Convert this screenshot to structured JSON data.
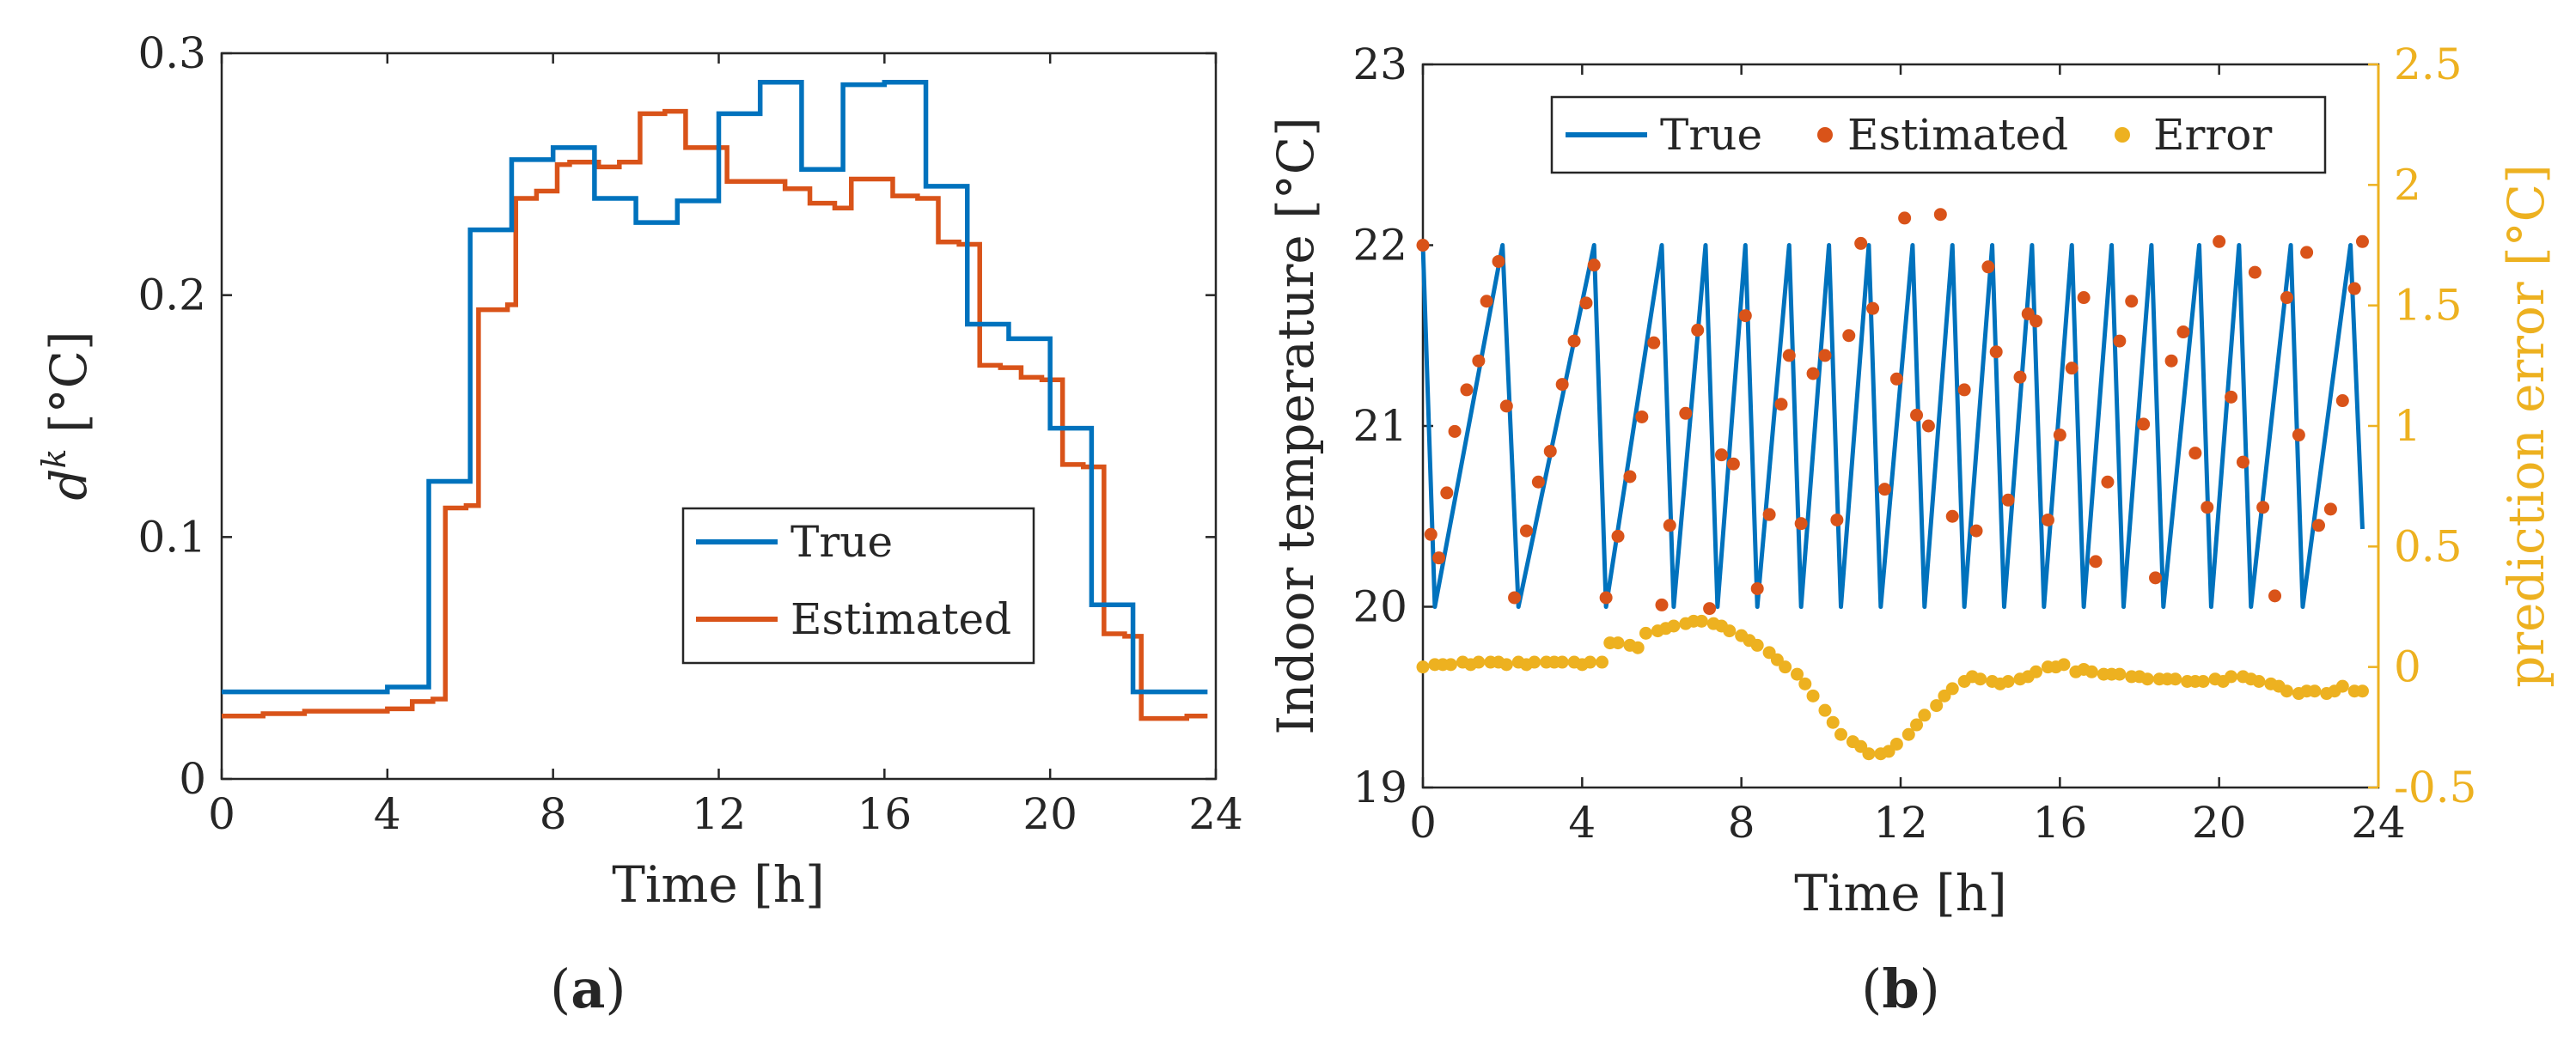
{
  "colors": {
    "true_line": "#0072BD",
    "estimated": "#D95319",
    "error": "#EDB120",
    "axis": "#262626"
  },
  "panels": {
    "a": {
      "label_prefix": "(",
      "label_letter": "a",
      "label_suffix": ")"
    },
    "b": {
      "label_prefix": "(",
      "label_letter": "b",
      "label_suffix": ")"
    }
  },
  "chart_data": [
    {
      "id": "a",
      "type": "line",
      "title": "",
      "xlabel": "Time [h]",
      "ylabel_main": "d",
      "ylabel_sup": "k",
      "ylabel_unit": " [°C]",
      "xlim": [
        0,
        24
      ],
      "ylim": [
        0,
        0.3
      ],
      "xticks": [
        0,
        4,
        8,
        12,
        16,
        20,
        24
      ],
      "xtick_labels": [
        "0",
        "4",
        "8",
        "12",
        "16",
        "20",
        "24"
      ],
      "yticks": [
        0,
        0.1,
        0.2,
        0.3
      ],
      "ytick_labels": [
        "0",
        "0.1",
        "0.2",
        "0.3"
      ],
      "legend": {
        "position": "lower-right",
        "entries": [
          "True",
          "Estimated"
        ]
      },
      "series": [
        {
          "name": "True",
          "style": "step",
          "x": [
            0,
            4,
            4.8,
            5,
            5.8,
            6,
            6.8,
            7,
            7.8,
            8,
            8.8,
            9,
            9.8,
            10,
            10.8,
            11,
            11.8,
            12,
            12.8,
            13,
            13.8,
            14,
            14.8,
            15,
            15.8,
            16,
            16.8,
            17,
            17.8,
            18,
            18.8,
            19,
            19.8,
            20,
            20.8,
            21,
            21.8,
            22,
            23.8
          ],
          "y": [
            0.036,
            0.038,
            0.038,
            0.123,
            0.123,
            0.227,
            0.227,
            0.256,
            0.256,
            0.261,
            0.261,
            0.24,
            0.24,
            0.23,
            0.23,
            0.239,
            0.239,
            0.275,
            0.275,
            0.288,
            0.288,
            0.252,
            0.252,
            0.287,
            0.287,
            0.288,
            0.288,
            0.245,
            0.245,
            0.188,
            0.188,
            0.182,
            0.182,
            0.145,
            0.145,
            0.072,
            0.072,
            0.036,
            0.036
          ]
        },
        {
          "name": "Estimated",
          "style": "step",
          "x": [
            0,
            1,
            2,
            3,
            4,
            4.6,
            5.1,
            5.4,
            5.9,
            6.2,
            6.9,
            7.1,
            7.6,
            8.1,
            8.4,
            9.1,
            9.6,
            10.1,
            10.7,
            11.2,
            11.6,
            12.2,
            12.9,
            13.6,
            14.2,
            14.8,
            15.2,
            15.8,
            16.2,
            16.8,
            17.3,
            17.8,
            18.3,
            18.8,
            19.3,
            19.8,
            20.3,
            20.8,
            21.3,
            21.8,
            22.2,
            22.8,
            23.3,
            23.8
          ],
          "y": [
            0.026,
            0.027,
            0.028,
            0.028,
            0.029,
            0.032,
            0.033,
            0.112,
            0.113,
            0.194,
            0.196,
            0.24,
            0.243,
            0.254,
            0.255,
            0.253,
            0.255,
            0.275,
            0.276,
            0.261,
            0.261,
            0.247,
            0.247,
            0.244,
            0.238,
            0.236,
            0.248,
            0.248,
            0.241,
            0.24,
            0.222,
            0.221,
            0.171,
            0.17,
            0.166,
            0.165,
            0.13,
            0.129,
            0.06,
            0.059,
            0.025,
            0.025,
            0.026,
            0.026
          ]
        }
      ]
    },
    {
      "id": "b",
      "type": "line+scatter",
      "title": "",
      "xlabel": "Time [h]",
      "ylabel_left": "Indoor temperature [°C]",
      "ylabel_right": "prediction error [°C]",
      "xlim": [
        0,
        24
      ],
      "ylim_left": [
        19,
        23
      ],
      "ylim_right": [
        -0.5,
        2.5
      ],
      "xticks": [
        0,
        4,
        8,
        12,
        16,
        20,
        24
      ],
      "xtick_labels": [
        "0",
        "4",
        "8",
        "12",
        "16",
        "20",
        "24"
      ],
      "yticks_left": [
        19,
        20,
        21,
        22,
        23
      ],
      "ytick_labels_left": [
        "19",
        "20",
        "21",
        "22",
        "23"
      ],
      "yticks_right": [
        -0.5,
        0,
        0.5,
        1,
        1.5,
        2,
        2.5
      ],
      "ytick_labels_right": [
        "-0.5",
        "0",
        "0.5",
        "1",
        "1.5",
        "2",
        "2.5"
      ],
      "legend": {
        "position": "top-left",
        "entries": [
          "True",
          "Estimated",
          "Error"
        ]
      },
      "series": [
        {
          "name": "True",
          "kind": "line",
          "axis": "left",
          "x": [
            0.0,
            0.3,
            2.0,
            2.4,
            4.3,
            4.6,
            6.0,
            6.3,
            7.1,
            7.4,
            8.1,
            8.4,
            9.2,
            9.5,
            10.2,
            10.5,
            11.2,
            11.5,
            12.3,
            12.6,
            13.3,
            13.6,
            14.3,
            14.6,
            15.3,
            15.6,
            16.3,
            16.6,
            17.3,
            17.6,
            18.3,
            18.6,
            19.5,
            19.8,
            20.5,
            20.8,
            21.8,
            22.1,
            23.3,
            23.6
          ],
          "y": [
            22.0,
            20.0,
            22.0,
            20.0,
            22.0,
            20.0,
            22.0,
            20.0,
            22.0,
            20.0,
            22.0,
            20.0,
            22.0,
            20.0,
            22.0,
            20.0,
            22.0,
            20.0,
            22.0,
            20.0,
            22.0,
            20.0,
            22.0,
            20.0,
            22.0,
            20.0,
            22.0,
            20.0,
            22.0,
            20.0,
            22.0,
            20.0,
            22.0,
            20.0,
            22.0,
            20.0,
            22.0,
            20.0,
            22.0,
            20.43
          ]
        },
        {
          "name": "Estimated",
          "kind": "scatter",
          "axis": "left",
          "x": [
            0.0,
            0.2,
            0.4,
            0.6,
            0.8,
            1.1,
            1.4,
            1.6,
            1.9,
            2.1,
            2.3,
            2.6,
            2.9,
            3.2,
            3.5,
            3.8,
            4.1,
            4.3,
            4.6,
            4.9,
            5.2,
            5.5,
            5.8,
            6.0,
            6.2,
            6.6,
            6.9,
            7.2,
            7.5,
            7.8,
            8.1,
            8.4,
            8.7,
            9.0,
            9.2,
            9.5,
            9.8,
            10.1,
            10.4,
            10.7,
            11.0,
            11.3,
            11.6,
            11.9,
            12.1,
            12.4,
            12.7,
            13.0,
            13.3,
            13.6,
            13.9,
            14.2,
            14.4,
            14.7,
            15.0,
            15.2,
            15.4,
            15.7,
            16.0,
            16.3,
            16.6,
            16.9,
            17.2,
            17.5,
            17.8,
            18.1,
            18.4,
            18.8,
            19.1,
            19.4,
            19.7,
            20.0,
            20.3,
            20.6,
            20.9,
            21.1,
            21.4,
            21.7,
            22.0,
            22.2,
            22.5,
            22.8,
            23.1,
            23.4,
            23.6
          ],
          "y": [
            22.0,
            20.4,
            20.27,
            20.63,
            20.97,
            21.2,
            21.36,
            21.69,
            21.91,
            21.11,
            20.05,
            20.42,
            20.69,
            20.86,
            21.23,
            21.47,
            21.68,
            21.89,
            20.05,
            20.39,
            20.72,
            21.05,
            21.46,
            20.01,
            20.45,
            21.07,
            21.53,
            19.99,
            20.84,
            20.79,
            21.61,
            20.1,
            20.51,
            21.12,
            21.39,
            20.46,
            21.29,
            21.39,
            20.48,
            21.5,
            22.01,
            21.65,
            20.65,
            21.26,
            22.15,
            21.06,
            21.0,
            22.17,
            20.5,
            21.2,
            20.42,
            21.88,
            21.41,
            20.59,
            21.27,
            21.62,
            21.58,
            20.48,
            20.95,
            21.32,
            21.71,
            20.25,
            20.69,
            21.47,
            21.69,
            21.01,
            20.16,
            21.36,
            21.52,
            20.85,
            20.55,
            22.02,
            21.16,
            20.8,
            21.85,
            20.55,
            20.06,
            21.71,
            20.95,
            21.96,
            20.45,
            20.54,
            21.14,
            21.76,
            22.02
          ]
        },
        {
          "name": "Error",
          "kind": "scatter",
          "axis": "right",
          "x": [
            0.0,
            0.3,
            0.5,
            0.7,
            1.0,
            1.2,
            1.4,
            1.7,
            1.9,
            2.1,
            2.4,
            2.6,
            2.8,
            3.1,
            3.3,
            3.5,
            3.8,
            4.0,
            4.2,
            4.5,
            4.7,
            4.9,
            5.2,
            5.4,
            5.6,
            5.9,
            6.1,
            6.3,
            6.6,
            6.8,
            7.0,
            7.3,
            7.5,
            7.7,
            8.0,
            8.2,
            8.4,
            8.7,
            8.9,
            9.1,
            9.4,
            9.6,
            9.8,
            10.1,
            10.3,
            10.5,
            10.8,
            11.0,
            11.2,
            11.5,
            11.7,
            11.9,
            12.2,
            12.4,
            12.6,
            12.9,
            13.1,
            13.3,
            13.6,
            13.8,
            14.0,
            14.3,
            14.5,
            14.7,
            15.0,
            15.2,
            15.4,
            15.7,
            15.9,
            16.1,
            16.4,
            16.6,
            16.8,
            17.1,
            17.3,
            17.5,
            17.8,
            18.0,
            18.2,
            18.5,
            18.7,
            18.9,
            19.2,
            19.4,
            19.6,
            19.9,
            20.1,
            20.3,
            20.6,
            20.8,
            21.0,
            21.3,
            21.5,
            21.7,
            22.0,
            22.2,
            22.4,
            22.7,
            22.9,
            23.1,
            23.4,
            23.6
          ],
          "y": [
            0.0,
            0.01,
            0.01,
            0.01,
            0.02,
            0.01,
            0.02,
            0.02,
            0.02,
            0.01,
            0.02,
            0.01,
            0.02,
            0.02,
            0.02,
            0.02,
            0.02,
            0.01,
            0.02,
            0.02,
            0.1,
            0.1,
            0.09,
            0.08,
            0.14,
            0.15,
            0.16,
            0.17,
            0.18,
            0.19,
            0.19,
            0.18,
            0.17,
            0.15,
            0.13,
            0.11,
            0.09,
            0.06,
            0.03,
            0.0,
            -0.03,
            -0.07,
            -0.12,
            -0.18,
            -0.23,
            -0.28,
            -0.31,
            -0.33,
            -0.36,
            -0.36,
            -0.35,
            -0.32,
            -0.28,
            -0.24,
            -0.2,
            -0.16,
            -0.12,
            -0.09,
            -0.06,
            -0.04,
            -0.05,
            -0.06,
            -0.07,
            -0.06,
            -0.05,
            -0.04,
            -0.02,
            0.0,
            0.0,
            0.01,
            -0.02,
            -0.01,
            -0.02,
            -0.03,
            -0.03,
            -0.03,
            -0.04,
            -0.04,
            -0.05,
            -0.05,
            -0.05,
            -0.05,
            -0.06,
            -0.06,
            -0.06,
            -0.05,
            -0.06,
            -0.04,
            -0.04,
            -0.05,
            -0.06,
            -0.07,
            -0.08,
            -0.1,
            -0.11,
            -0.1,
            -0.1,
            -0.11,
            -0.1,
            -0.08,
            -0.1,
            -0.1
          ]
        }
      ]
    }
  ]
}
